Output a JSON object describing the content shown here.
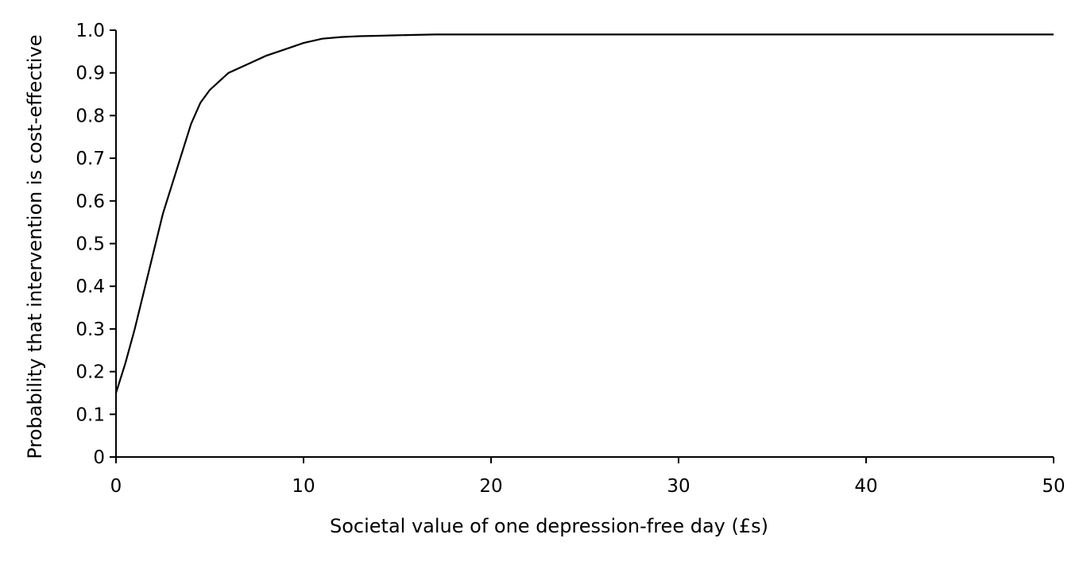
{
  "chart_data": {
    "type": "line",
    "title": "",
    "xlabel": "Societal value of one depression-free day (£s)",
    "ylabel": "Probability that intervention is cost-effective",
    "xlim": [
      0,
      50
    ],
    "ylim": [
      0,
      1.0
    ],
    "xticks": [
      0,
      10,
      20,
      30,
      40,
      50
    ],
    "xtick_labels": [
      "0",
      "10",
      "20",
      "30",
      "40",
      "50"
    ],
    "yticks": [
      0,
      0.1,
      0.2,
      0.3,
      0.4,
      0.5,
      0.6,
      0.7,
      0.8,
      0.9,
      1.0
    ],
    "ytick_labels": [
      "0",
      "0.1",
      "0.2",
      "0.3",
      "0.4",
      "0.5",
      "0.6",
      "0.7",
      "0.8",
      "0.9",
      "1.0"
    ],
    "grid": false,
    "legend": "none",
    "series": [
      {
        "x": [
          0,
          0.5,
          1,
          1.5,
          2,
          2.5,
          3,
          3.5,
          4,
          4.5,
          5,
          5.5,
          6,
          7,
          8,
          9,
          10,
          11,
          12,
          13,
          14,
          15,
          16,
          17,
          20,
          25,
          30,
          35,
          40,
          45,
          50
        ],
        "y": [
          0.15,
          0.22,
          0.3,
          0.39,
          0.48,
          0.57,
          0.64,
          0.71,
          0.78,
          0.83,
          0.86,
          0.88,
          0.9,
          0.92,
          0.94,
          0.955,
          0.97,
          0.98,
          0.984,
          0.986,
          0.987,
          0.988,
          0.989,
          0.99,
          0.99,
          0.99,
          0.99,
          0.99,
          0.99,
          0.99,
          0.99
        ]
      }
    ]
  }
}
